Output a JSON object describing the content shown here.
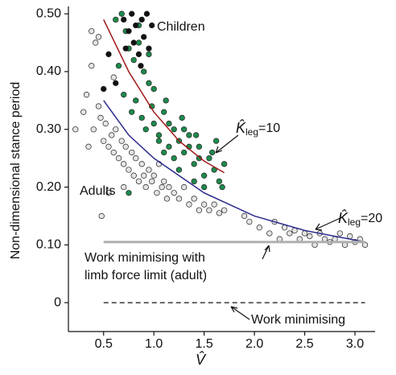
{
  "chart_data": {
    "type": "scatter",
    "xlabel": "V̂",
    "ylabel": "Non-dimensional stance period",
    "xlim": [
      0.15,
      3.2
    ],
    "ylim": [
      -0.05,
      0.51
    ],
    "xticks": [
      0.5,
      {
        "value": 1,
        "label": "1.0"
      },
      1.5,
      {
        "value": 2,
        "label": "2.0"
      },
      2.5,
      {
        "value": 3,
        "label": "3.0"
      }
    ],
    "yticks": [
      {
        "value": 0.5,
        "label": "0.50"
      },
      {
        "value": 0.4,
        "label": "0.40"
      },
      {
        "value": 0.3,
        "label": "0.30"
      },
      {
        "value": 0.2,
        "label": "0.20"
      },
      {
        "value": 0.1,
        "label": "0.10"
      },
      0
    ],
    "series": [
      {
        "color": "#e4e4e4",
        "x": [
          0.22,
          0.3,
          0.33,
          0.35,
          0.38,
          0.4,
          0.42,
          0.45,
          0.47,
          0.5,
          0.52,
          0.55,
          0.58,
          0.6,
          0.62,
          0.65,
          0.68,
          0.7,
          0.72,
          0.75,
          0.78,
          0.8,
          0.82,
          0.85,
          0.88,
          0.9,
          0.92,
          0.95,
          0.98,
          1.0,
          1.03,
          1.05,
          1.08,
          1.1,
          1.13,
          1.15,
          1.2,
          1.25,
          1.3,
          1.35,
          1.4,
          1.45,
          1.5,
          1.55,
          1.6,
          1.65,
          1.7,
          1.9,
          1.95,
          2.05,
          2.15,
          2.2,
          2.25,
          2.3,
          2.35,
          2.4,
          2.45,
          2.5,
          2.55,
          2.6,
          2.65,
          2.7,
          2.75,
          2.8,
          2.85,
          2.9,
          2.95,
          3.0,
          3.05,
          3.1,
          0.48,
          0.6,
          0.7,
          0.45,
          0.38,
          0.55
        ],
        "values": [
          0.3,
          0.33,
          0.36,
          0.27,
          0.41,
          0.3,
          0.45,
          0.34,
          0.32,
          0.28,
          0.31,
          0.27,
          0.29,
          0.26,
          0.3,
          0.25,
          0.28,
          0.24,
          0.27,
          0.23,
          0.26,
          0.22,
          0.25,
          0.21,
          0.24,
          0.22,
          0.2,
          0.23,
          0.21,
          0.22,
          0.19,
          0.24,
          0.2,
          0.21,
          0.18,
          0.2,
          0.19,
          0.18,
          0.2,
          0.17,
          0.18,
          0.16,
          0.17,
          0.16,
          0.17,
          0.155,
          0.16,
          0.15,
          0.14,
          0.13,
          0.12,
          0.14,
          0.11,
          0.13,
          0.12,
          0.125,
          0.11,
          0.12,
          0.115,
          0.1,
          0.12,
          0.11,
          0.105,
          0.11,
          0.12,
          0.1,
          0.115,
          0.105,
          0.11,
          0.1,
          0.15,
          0.39,
          0.2,
          0.46,
          0.47,
          0.19
        ]
      },
      {
        "color": "#1e8a4c",
        "x": [
          0.62,
          0.68,
          0.72,
          0.75,
          0.8,
          0.85,
          0.9,
          0.95,
          0.7,
          0.78,
          0.82,
          0.88,
          0.92,
          0.98,
          1.0,
          1.05,
          1.1,
          1.15,
          1.2,
          1.25,
          1.3,
          1.35,
          1.4,
          1.45,
          1.5,
          1.55,
          1.6,
          1.65,
          1.7,
          1.0,
          1.05,
          1.1,
          1.15,
          1.2,
          1.25,
          1.3,
          1.35,
          1.4,
          1.45,
          1.5,
          0.65,
          0.85,
          0.95,
          1.12,
          1.28,
          1.42,
          1.58,
          0.75,
          1.62,
          1.68
        ],
        "values": [
          0.49,
          0.5,
          0.47,
          0.44,
          0.42,
          0.45,
          0.4,
          0.38,
          0.36,
          0.33,
          0.35,
          0.32,
          0.3,
          0.34,
          0.31,
          0.29,
          0.33,
          0.27,
          0.3,
          0.28,
          0.26,
          0.29,
          0.24,
          0.27,
          0.22,
          0.25,
          0.23,
          0.21,
          0.24,
          0.37,
          0.28,
          0.26,
          0.31,
          0.25,
          0.23,
          0.3,
          0.27,
          0.21,
          0.25,
          0.2,
          0.41,
          0.48,
          0.43,
          0.35,
          0.32,
          0.29,
          0.26,
          0.19,
          0.28,
          0.2
        ]
      },
      {
        "color": "#111111",
        "x": [
          0.7,
          0.75,
          0.78,
          0.8,
          0.82,
          0.85,
          0.88,
          0.9,
          0.95,
          0.98,
          0.72,
          0.87,
          0.93,
          0.55,
          0.5,
          0.62
        ],
        "values": [
          0.49,
          0.47,
          0.5,
          0.45,
          0.48,
          0.43,
          0.49,
          0.46,
          0.44,
          0.48,
          0.44,
          0.41,
          0.5,
          0.43,
          0.37,
          0.38
        ]
      }
    ],
    "lines": [
      {
        "color": "#a01818",
        "width": 1.5,
        "x": [
          0.5,
          0.75,
          1.0,
          1.25,
          1.5,
          1.7
        ],
        "values": [
          0.49,
          0.4,
          0.33,
          0.28,
          0.245,
          0.225
        ]
      },
      {
        "color": "#2a2a8c",
        "width": 1.5,
        "x": [
          0.5,
          0.75,
          1.0,
          1.5,
          2.0,
          2.5,
          3.1
        ],
        "values": [
          0.35,
          0.29,
          0.25,
          0.19,
          0.15,
          0.125,
          0.105
        ]
      },
      {
        "color": "#b0b0b0",
        "width": 3,
        "x": [
          0.5,
          3.1
        ],
        "values": [
          0.105,
          0.105
        ]
      },
      {
        "color": "#111111",
        "width": 1.3,
        "dashed": true,
        "x": [
          0.5,
          3.1
        ],
        "values": [
          0,
          0
        ]
      }
    ],
    "annotations": [
      {
        "text": "Children"
      },
      {
        "text": "Adults"
      },
      {
        "text": "K̂",
        "sub": "leg",
        "tail": "=10"
      },
      {
        "text": "K̂",
        "sub": "leg",
        "tail": "=20"
      },
      {
        "lines": [
          "Work minimising with",
          "limb force limit (adult)"
        ]
      },
      {
        "text": "Work minimising"
      }
    ]
  }
}
